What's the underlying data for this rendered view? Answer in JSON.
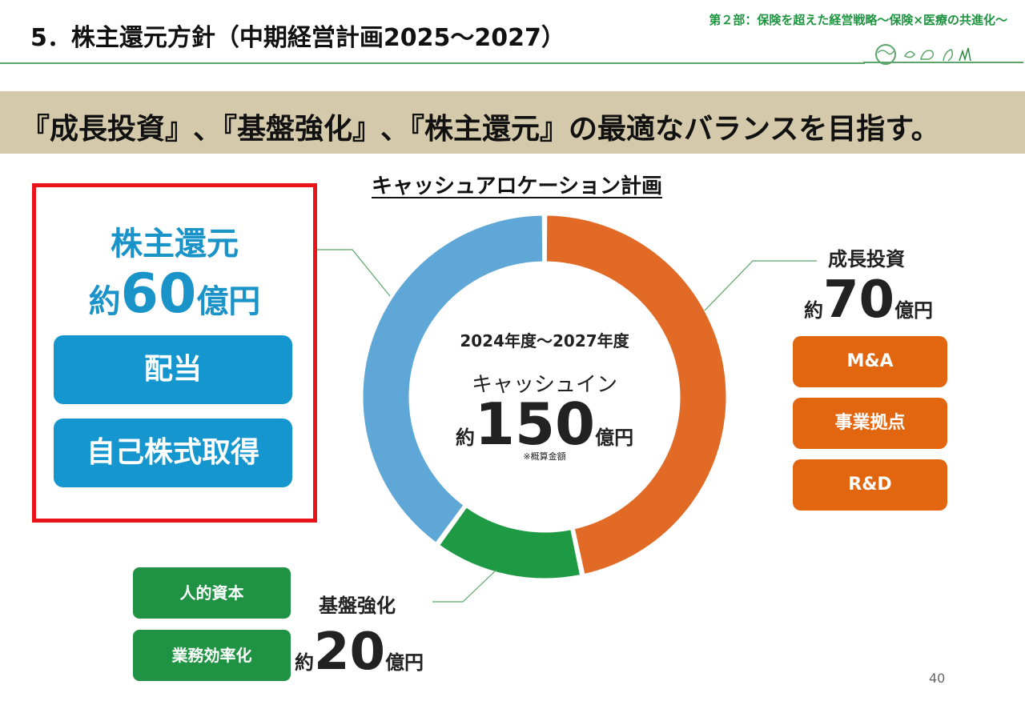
{
  "header": {
    "title": "5．株主還元方針（中期経営計画2025～2027）",
    "subtitle": "第２部：保険を超えた経営戦略～保険×医療の共進化～"
  },
  "banner": {
    "text": "『成長投資』､『基盤強化』､『株主還元』の最適なバランスを目指す。"
  },
  "colors": {
    "growth": "#e06a26",
    "foundation": "#1e9a45",
    "returns": "#5ea7d6",
    "banner": "#d5c9ab",
    "accent_red": "#e8141a"
  },
  "chart_data": {
    "type": "pie",
    "title": "キャッシュアロケーション計画",
    "center": {
      "period": "2024年度～2027年度",
      "label": "キャッシュイン",
      "prefix": "約",
      "value": "150",
      "unit": "億円",
      "note": "※概算金額"
    },
    "total": 150,
    "slices": [
      {
        "name": "成長投資",
        "value": 70,
        "color": "#e06a26"
      },
      {
        "name": "基盤強化",
        "value": 20,
        "color": "#1e9a45"
      },
      {
        "name": "株主還元",
        "value": 60,
        "color": "#5ea7d6"
      }
    ]
  },
  "shareholder_returns": {
    "title": "株主還元",
    "prefix": "約",
    "value": "60",
    "unit": "億円",
    "items": [
      "配当",
      "自己株式取得"
    ]
  },
  "growth_investment": {
    "title": "成長投資",
    "prefix": "約",
    "value": "70",
    "unit": "億円",
    "items": [
      "M&A",
      "事業拠点",
      "R&D"
    ]
  },
  "foundation": {
    "title": "基盤強化",
    "prefix": "約",
    "value": "20",
    "unit": "億円",
    "items": [
      "人的資本",
      "業務効率化"
    ]
  },
  "page_number": "40"
}
